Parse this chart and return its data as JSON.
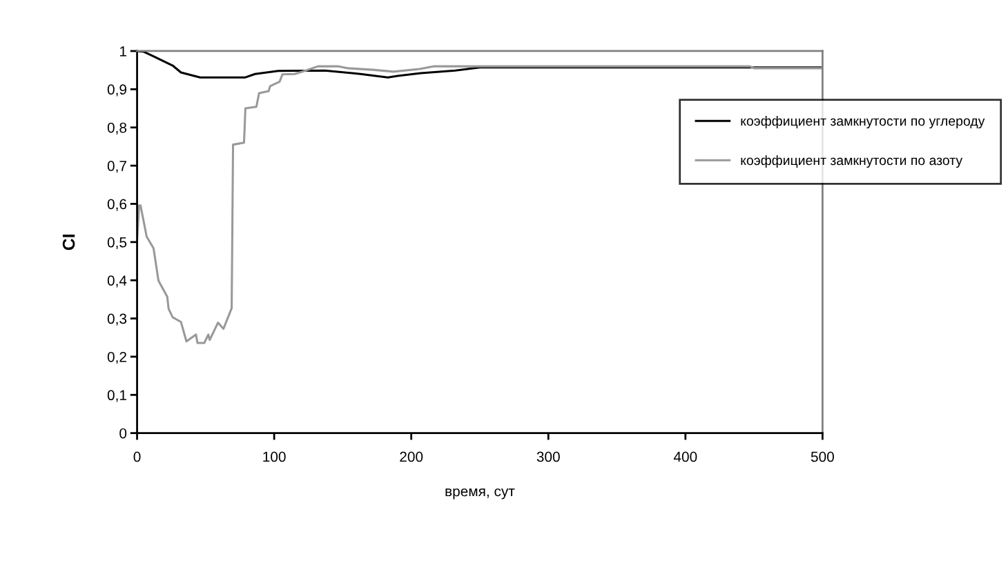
{
  "chart_data": {
    "type": "line",
    "xlabel": "время, сут",
    "ylabel": "CI",
    "xlim": [
      0,
      500
    ],
    "xticks": [
      0,
      100,
      200,
      300,
      400,
      500
    ],
    "ylim": [
      0,
      1
    ],
    "yticks": [
      0,
      {
        "value": 0.1,
        "label": "0,1"
      },
      {
        "value": 0.2,
        "label": "0,2"
      },
      {
        "value": 0.3,
        "label": "0,3"
      },
      {
        "value": 0.4,
        "label": "0,4"
      },
      {
        "value": 0.5,
        "label": "0,5"
      },
      {
        "value": 0.6,
        "label": "0,6"
      },
      {
        "value": 0.7,
        "label": "0,7"
      },
      {
        "value": 0.8,
        "label": "0,8"
      },
      {
        "value": 0.9,
        "label": "0,9"
      },
      1
    ],
    "grid": false,
    "legend": "top right",
    "marker": "none",
    "line_style": "solid",
    "series": [
      {
        "name": "коэффициент замкнутости по углероду",
        "color": "#000000",
        "x": [
          0,
          5,
          12,
          26,
          32,
          46,
          79,
          86,
          103,
          137,
          163,
          183,
          190,
          207,
          232,
          250,
          300,
          400,
          500
        ],
        "values": [
          1.0,
          0.998,
          0.986,
          0.962,
          0.944,
          0.931,
          0.931,
          0.94,
          0.948,
          0.949,
          0.94,
          0.931,
          0.935,
          0.942,
          0.949,
          0.957,
          0.957,
          0.957,
          0.957
        ]
      },
      {
        "name": "коэффициент замкнутости по азоту",
        "color": "#999999",
        "x": [
          0,
          1.5,
          2.5,
          7,
          12,
          15.6,
          22,
          23,
          26,
          32,
          36,
          43,
          44,
          49,
          52,
          53,
          59,
          63,
          69,
          70,
          78,
          79,
          87,
          89,
          96,
          97,
          104,
          106,
          115,
          123,
          132,
          147,
          154,
          172,
          187,
          206,
          216,
          300,
          400,
          447,
          450,
          500
        ],
        "values": [
          0.505,
          0.596,
          0.596,
          0.514,
          0.484,
          0.399,
          0.357,
          0.325,
          0.303,
          0.291,
          0.24,
          0.258,
          0.236,
          0.236,
          0.258,
          0.244,
          0.289,
          0.273,
          0.327,
          0.755,
          0.76,
          0.85,
          0.854,
          0.89,
          0.895,
          0.908,
          0.92,
          0.939,
          0.94,
          0.949,
          0.96,
          0.96,
          0.955,
          0.951,
          0.946,
          0.953,
          0.96,
          0.96,
          0.96,
          0.96,
          0.955,
          0.955
        ]
      }
    ]
  }
}
